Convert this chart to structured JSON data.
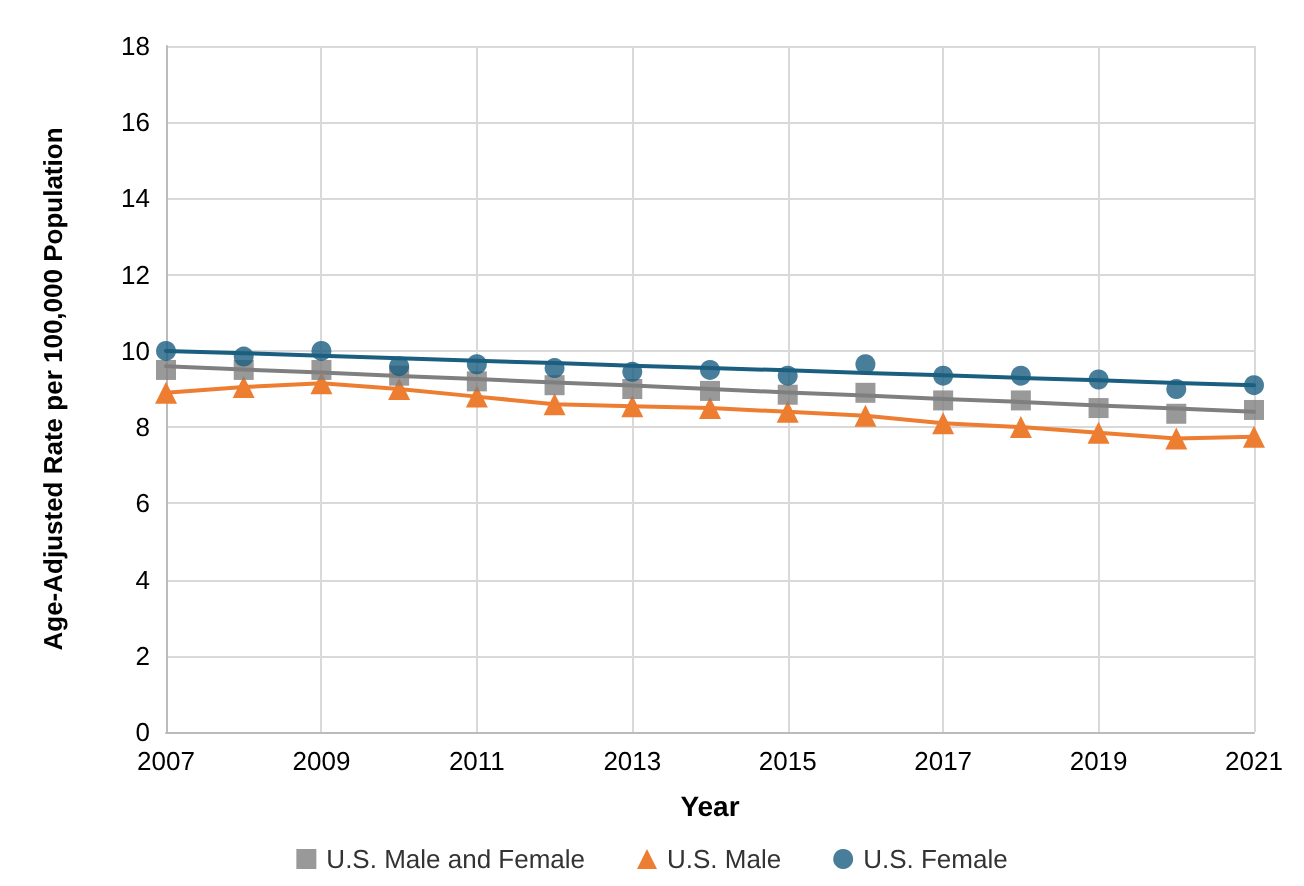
{
  "chart_data": {
    "type": "line",
    "xlabel": "Year",
    "ylabel": "Age-Adjusted Rate per 100,000 Population",
    "x": [
      2007,
      2008,
      2009,
      2010,
      2011,
      2012,
      2013,
      2014,
      2015,
      2016,
      2017,
      2018,
      2019,
      2020,
      2021
    ],
    "xlim": [
      2007,
      2021
    ],
    "xticks": [
      2007,
      2009,
      2011,
      2013,
      2015,
      2017,
      2019,
      2021
    ],
    "ylim": [
      0,
      18
    ],
    "yticks": [
      0,
      2,
      4,
      6,
      8,
      10,
      12,
      14,
      16,
      18
    ],
    "grid": true,
    "legend": "bottom",
    "series": [
      {
        "type": "line",
        "color": "#7f7f7f",
        "values": [
          9.6,
          9.51,
          9.43,
          9.34,
          9.26,
          9.17,
          9.09,
          9.0,
          8.91,
          8.83,
          8.74,
          8.66,
          8.57,
          8.49,
          8.4
        ],
        "marker": "none"
      },
      {
        "type": "line",
        "color": "#1a5e80",
        "values": [
          10.0,
          9.94,
          9.87,
          9.81,
          9.74,
          9.68,
          9.61,
          9.55,
          9.49,
          9.42,
          9.36,
          9.29,
          9.23,
          9.16,
          9.1
        ],
        "marker": "none"
      },
      {
        "name": "U.S. Male and Female",
        "type": "scatter",
        "color": "#7f7f7f",
        "marker": "square",
        "values": [
          9.5,
          9.5,
          9.5,
          9.35,
          9.2,
          9.1,
          9.0,
          8.95,
          8.85,
          8.9,
          8.7,
          8.7,
          8.5,
          8.35,
          8.45
        ]
      },
      {
        "name": "U.S. Male",
        "type": "line",
        "color": "#ed7d31",
        "marker": "triangle",
        "values": [
          8.9,
          9.05,
          9.15,
          9.0,
          8.8,
          8.6,
          8.55,
          8.5,
          8.4,
          8.3,
          8.1,
          8.0,
          7.85,
          7.7,
          7.75
        ]
      },
      {
        "name": "U.S. Female",
        "type": "scatter",
        "color": "#1a5e80",
        "marker": "circle",
        "values": [
          10.0,
          9.85,
          10.0,
          9.6,
          9.65,
          9.55,
          9.45,
          9.5,
          9.35,
          9.65,
          9.35,
          9.35,
          9.25,
          9.0,
          9.1
        ]
      }
    ]
  }
}
